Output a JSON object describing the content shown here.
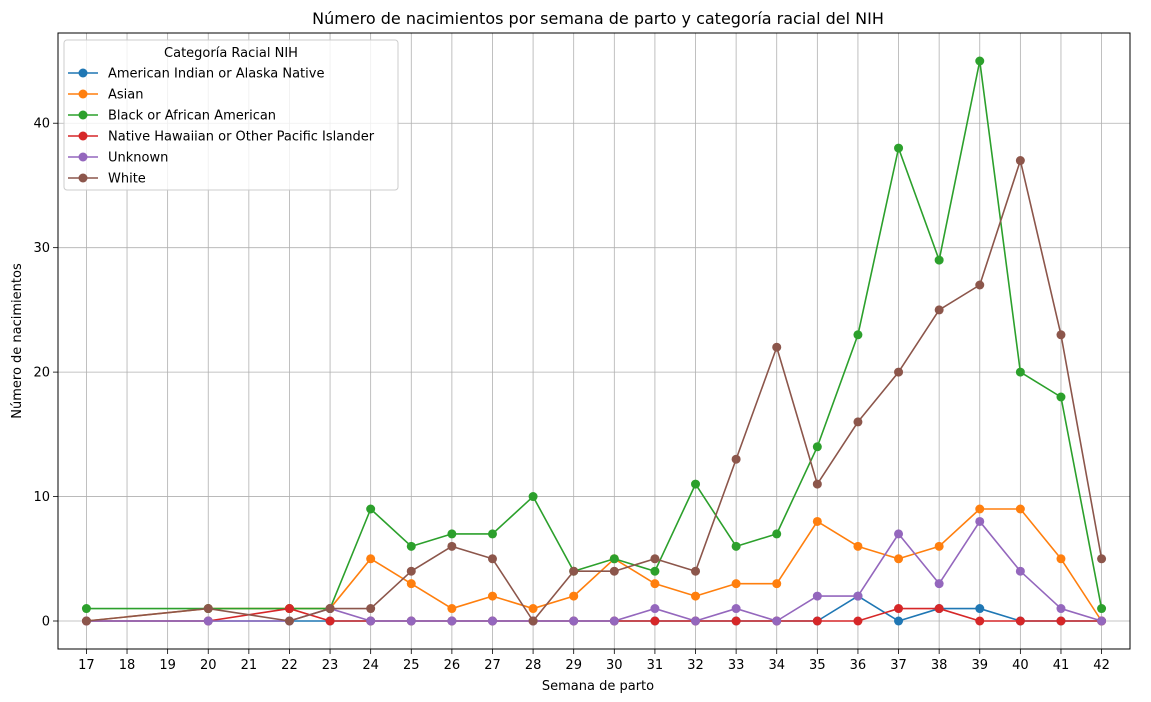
{
  "chart_data": {
    "type": "line",
    "title": "Número de nacimientos por semana de parto y categoría racial del NIH",
    "xlabel": "Semana de parto",
    "ylabel": "Número de nacimientos",
    "xlim": [
      16.3,
      42.7
    ],
    "ylim": [
      -2.25,
      47.25
    ],
    "x_ticks": [
      17,
      18,
      19,
      20,
      21,
      22,
      23,
      24,
      25,
      26,
      27,
      28,
      29,
      30,
      31,
      32,
      33,
      34,
      35,
      36,
      37,
      38,
      39,
      40,
      41,
      42
    ],
    "y_ticks": [
      0,
      10,
      20,
      30,
      40
    ],
    "grid": true,
    "legend": {
      "title": "Categoría Racial NIH",
      "placement": "top-left"
    },
    "series": [
      {
        "name": "American Indian or Alaska Native",
        "color": "#1f77b4",
        "x": [
          17,
          20,
          22,
          23,
          24,
          25,
          26,
          27,
          28,
          29,
          30,
          31,
          32,
          33,
          34,
          35,
          36,
          37,
          38,
          39,
          40,
          41,
          42
        ],
        "y": [
          0,
          0,
          0,
          0,
          0,
          0,
          0,
          0,
          0,
          0,
          0,
          0,
          0,
          0,
          0,
          0,
          2,
          0,
          1,
          1,
          0,
          0,
          0
        ]
      },
      {
        "name": "Asian",
        "color": "#ff7f0e",
        "x": [
          17,
          20,
          22,
          23,
          24,
          25,
          26,
          27,
          28,
          29,
          30,
          31,
          32,
          33,
          34,
          35,
          36,
          37,
          38,
          39,
          40,
          41,
          42
        ],
        "y": [
          0,
          1,
          1,
          1,
          5,
          3,
          1,
          2,
          1,
          2,
          5,
          3,
          2,
          3,
          3,
          8,
          6,
          5,
          6,
          9,
          9,
          5,
          0
        ]
      },
      {
        "name": "Black or African American",
        "color": "#2ca02c",
        "x": [
          17,
          20,
          22,
          23,
          24,
          25,
          26,
          27,
          28,
          29,
          30,
          31,
          32,
          33,
          34,
          35,
          36,
          37,
          38,
          39,
          40,
          41,
          42
        ],
        "y": [
          1,
          1,
          1,
          1,
          9,
          6,
          7,
          7,
          10,
          4,
          5,
          4,
          11,
          6,
          7,
          14,
          23,
          38,
          29,
          45,
          20,
          18,
          1
        ]
      },
      {
        "name": "Native Hawaiian or Other Pacific Islander",
        "color": "#d62728",
        "x": [
          17,
          20,
          22,
          23,
          24,
          25,
          26,
          27,
          28,
          29,
          30,
          31,
          32,
          33,
          34,
          35,
          36,
          37,
          38,
          39,
          40,
          41,
          42
        ],
        "y": [
          0,
          0,
          1,
          0,
          0,
          0,
          0,
          0,
          0,
          0,
          0,
          0,
          0,
          0,
          0,
          0,
          0,
          1,
          1,
          0,
          0,
          0,
          0
        ]
      },
      {
        "name": "Unknown",
        "color": "#9467bd",
        "x": [
          17,
          20,
          22,
          23,
          24,
          25,
          26,
          27,
          28,
          29,
          30,
          31,
          32,
          33,
          34,
          35,
          36,
          37,
          38,
          39,
          40,
          41,
          42
        ],
        "y": [
          0,
          0,
          0,
          1,
          0,
          0,
          0,
          0,
          0,
          0,
          0,
          1,
          0,
          1,
          0,
          2,
          2,
          7,
          3,
          8,
          4,
          1,
          0
        ]
      },
      {
        "name": "White",
        "color": "#8c564b",
        "x": [
          17,
          20,
          22,
          23,
          24,
          25,
          26,
          27,
          28,
          29,
          30,
          31,
          32,
          33,
          34,
          35,
          36,
          37,
          38,
          39,
          40,
          41,
          42
        ],
        "y": [
          0,
          1,
          0,
          1,
          1,
          4,
          6,
          5,
          0,
          4,
          4,
          5,
          4,
          13,
          22,
          11,
          16,
          20,
          25,
          27,
          37,
          23,
          5
        ]
      }
    ]
  }
}
